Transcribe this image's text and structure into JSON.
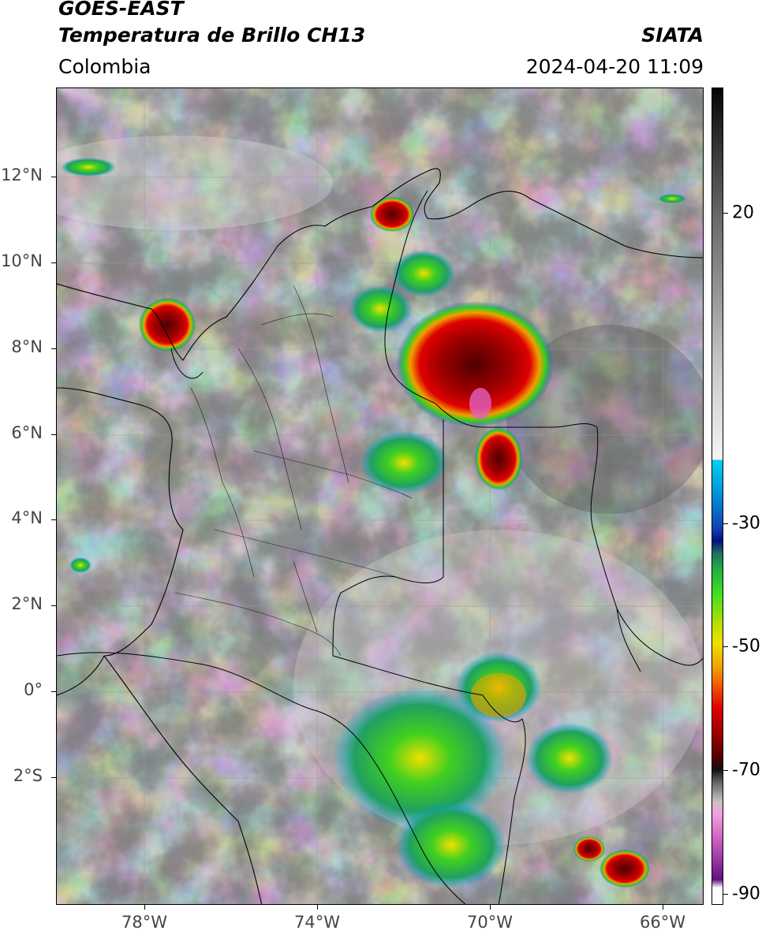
{
  "header": {
    "satellite": "GOES-EAST",
    "product": "Temperatura de Brillo CH13",
    "region": "Colombia",
    "agency": "SIATA",
    "datetime": "2024-04-20 11:09"
  },
  "map": {
    "lat_labels": [
      "12°N",
      "10°N",
      "8°N",
      "6°N",
      "4°N",
      "2°N",
      "0°",
      "2°S"
    ],
    "lat_values": [
      12,
      10,
      8,
      6,
      4,
      2,
      0,
      -2
    ],
    "lon_labels": [
      "78°W",
      "74°W",
      "70°W",
      "66°W"
    ],
    "lon_values": [
      -78,
      -74,
      -70,
      -66
    ],
    "extent": {
      "lon_min": -80,
      "lon_max": -65,
      "lat_min": -5,
      "lat_max": 14
    }
  },
  "colorbar": {
    "labels": [
      "20",
      "-30",
      "-50",
      "-70",
      "-90"
    ],
    "values": [
      20,
      -30,
      -50,
      -70,
      -90
    ],
    "range": [
      -92,
      35
    ],
    "colors": {
      "warm_gray": "#bdbdbd",
      "cyan": "#00c8f0",
      "blue": "#1030a0",
      "green": "#30d020",
      "yellow": "#f0e000",
      "orange": "#f08000",
      "red": "#d00000",
      "dark_red": "#600000",
      "magenta": "#e060c0"
    }
  }
}
